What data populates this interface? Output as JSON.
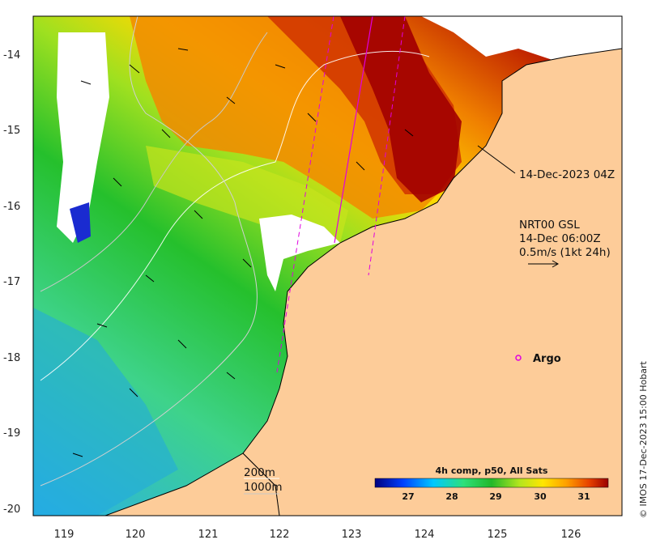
{
  "map": {
    "x_ticks": [
      "119",
      "120",
      "121",
      "122",
      "123",
      "124",
      "125",
      "126"
    ],
    "y_ticks": [
      "-14",
      "-15",
      "-16",
      "-17",
      "-18",
      "-19",
      "-20"
    ],
    "track_label": "14-Dec-2023 04Z",
    "current_title": "NRT00 GSL",
    "current_time": "14-Dec 06:00Z",
    "current_scale": "0.5m/s (1kt 24h)",
    "argo_label": "Argo",
    "contour_200": "200m",
    "contour_1000": "1000m",
    "credit": "© IMOS 17-Dec-2023 15:00 Hobart"
  },
  "colorbar": {
    "title": "4h comp, p50, All Sats",
    "ticks": [
      "27",
      "28",
      "29",
      "30",
      "31"
    ]
  },
  "colors": {
    "land": "#fdcc99",
    "argo": "#e000e0",
    "track": "#e000e0"
  }
}
